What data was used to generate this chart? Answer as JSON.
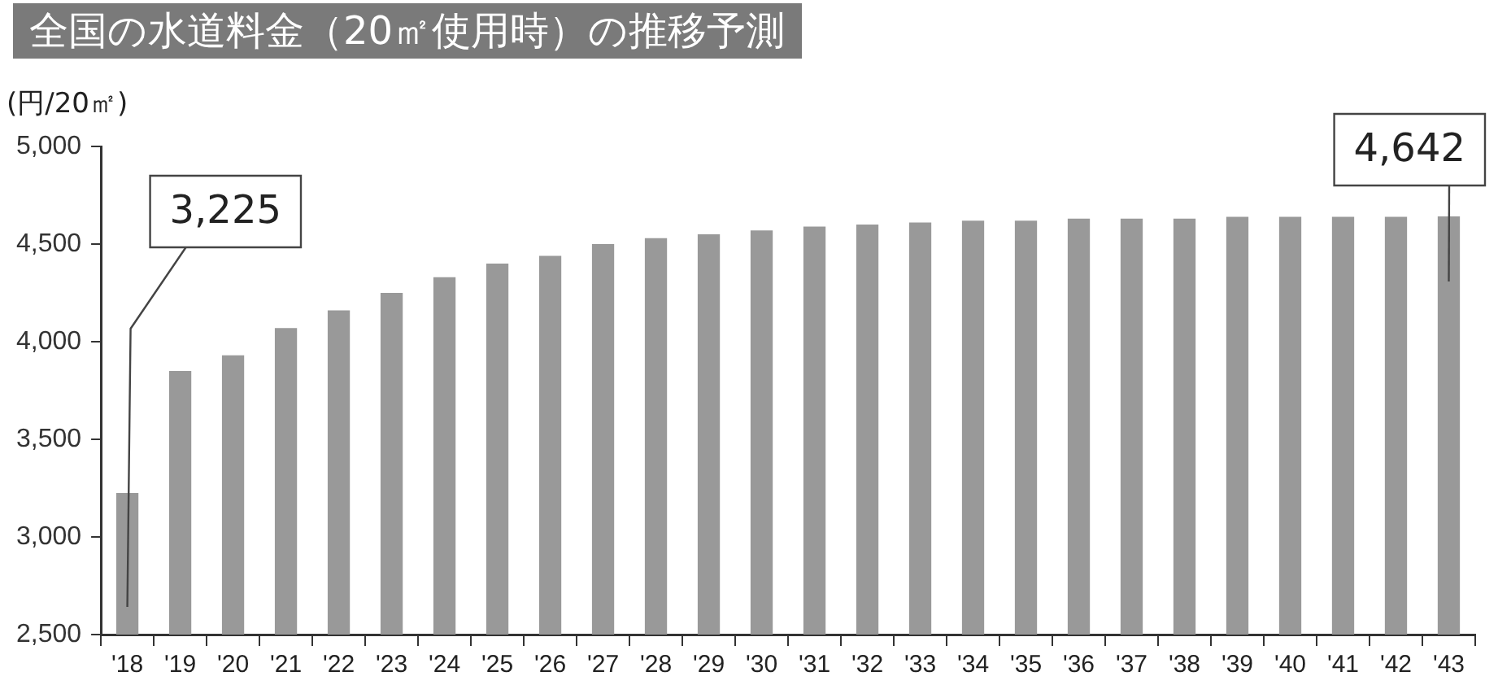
{
  "chart_data": {
    "type": "bar",
    "title": "全国の水道料金（20㎡使用時）の推移予測",
    "ylabel": "(円/20㎡)",
    "categories": [
      "'18",
      "'19",
      "'20",
      "'21",
      "'22",
      "'23",
      "'24",
      "'25",
      "'26",
      "'27",
      "'28",
      "'29",
      "'30",
      "'31",
      "'32",
      "'33",
      "'34",
      "'35",
      "'36",
      "'37",
      "'38",
      "'39",
      "'40",
      "'41",
      "'42",
      "'43"
    ],
    "values": [
      3225,
      3850,
      3930,
      4070,
      4160,
      4250,
      4330,
      4400,
      4440,
      4500,
      4530,
      4550,
      4570,
      4590,
      4600,
      4610,
      4620,
      4620,
      4630,
      4630,
      4630,
      4640,
      4640,
      4640,
      4640,
      4642
    ],
    "value_labels": [
      "3,225",
      null,
      null,
      null,
      null,
      null,
      null,
      null,
      null,
      null,
      null,
      null,
      null,
      null,
      null,
      null,
      null,
      null,
      null,
      null,
      null,
      null,
      null,
      null,
      null,
      "4,642"
    ],
    "color": "#999999",
    "ylim": [
      2500,
      5000
    ],
    "yticks": [
      {
        "value": 2500,
        "label": "2,500"
      },
      {
        "value": 3000,
        "label": "3,000"
      },
      {
        "value": 3500,
        "label": "3,500"
      },
      {
        "value": 4000,
        "label": "4,000"
      },
      {
        "value": 4500,
        "label": "4,500"
      },
      {
        "value": 5000,
        "label": "5,000"
      }
    ],
    "grid": false,
    "legend": false
  }
}
